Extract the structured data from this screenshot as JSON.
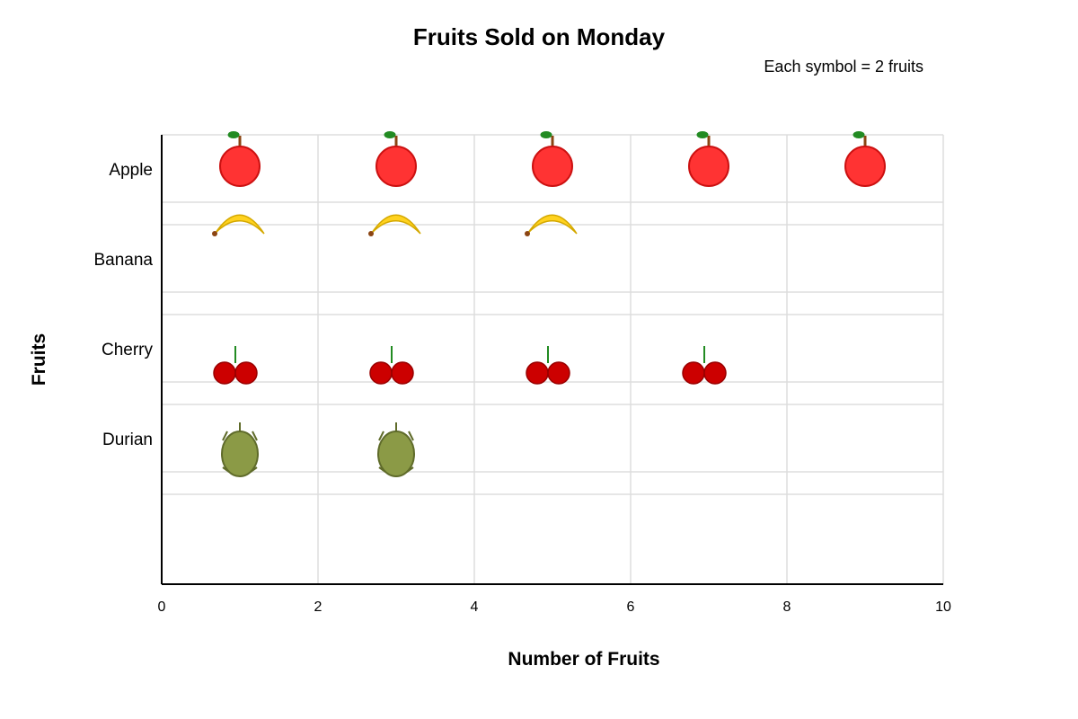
{
  "chart_data": {
    "type": "pictograph",
    "title": "Fruits Sold on Monday",
    "legend_note": "Each symbol = 2 fruits",
    "symbol_value": 2,
    "categories": [
      "Apple",
      "Banana",
      "Cherry",
      "Durian"
    ],
    "values": [
      10,
      6,
      8,
      4
    ],
    "xlabel": "Number of Fruits",
    "ylabel": "Fruits",
    "xlim": [
      0,
      10
    ],
    "xticks": [
      0,
      2,
      4,
      6,
      8,
      10
    ],
    "grid": true,
    "colors": {
      "apple": "#ff3333",
      "apple_stroke": "#cc1111",
      "banana": "#ffd21f",
      "banana_stroke": "#d4a800",
      "cherry": "#cc0000",
      "cherry_stroke": "#990000",
      "durian": "#8b9a46",
      "durian_stroke": "#5f6b2a",
      "stem": "#8b4513",
      "leaf": "#228b22",
      "grid": "#dddddd",
      "axis": "#000000"
    }
  }
}
